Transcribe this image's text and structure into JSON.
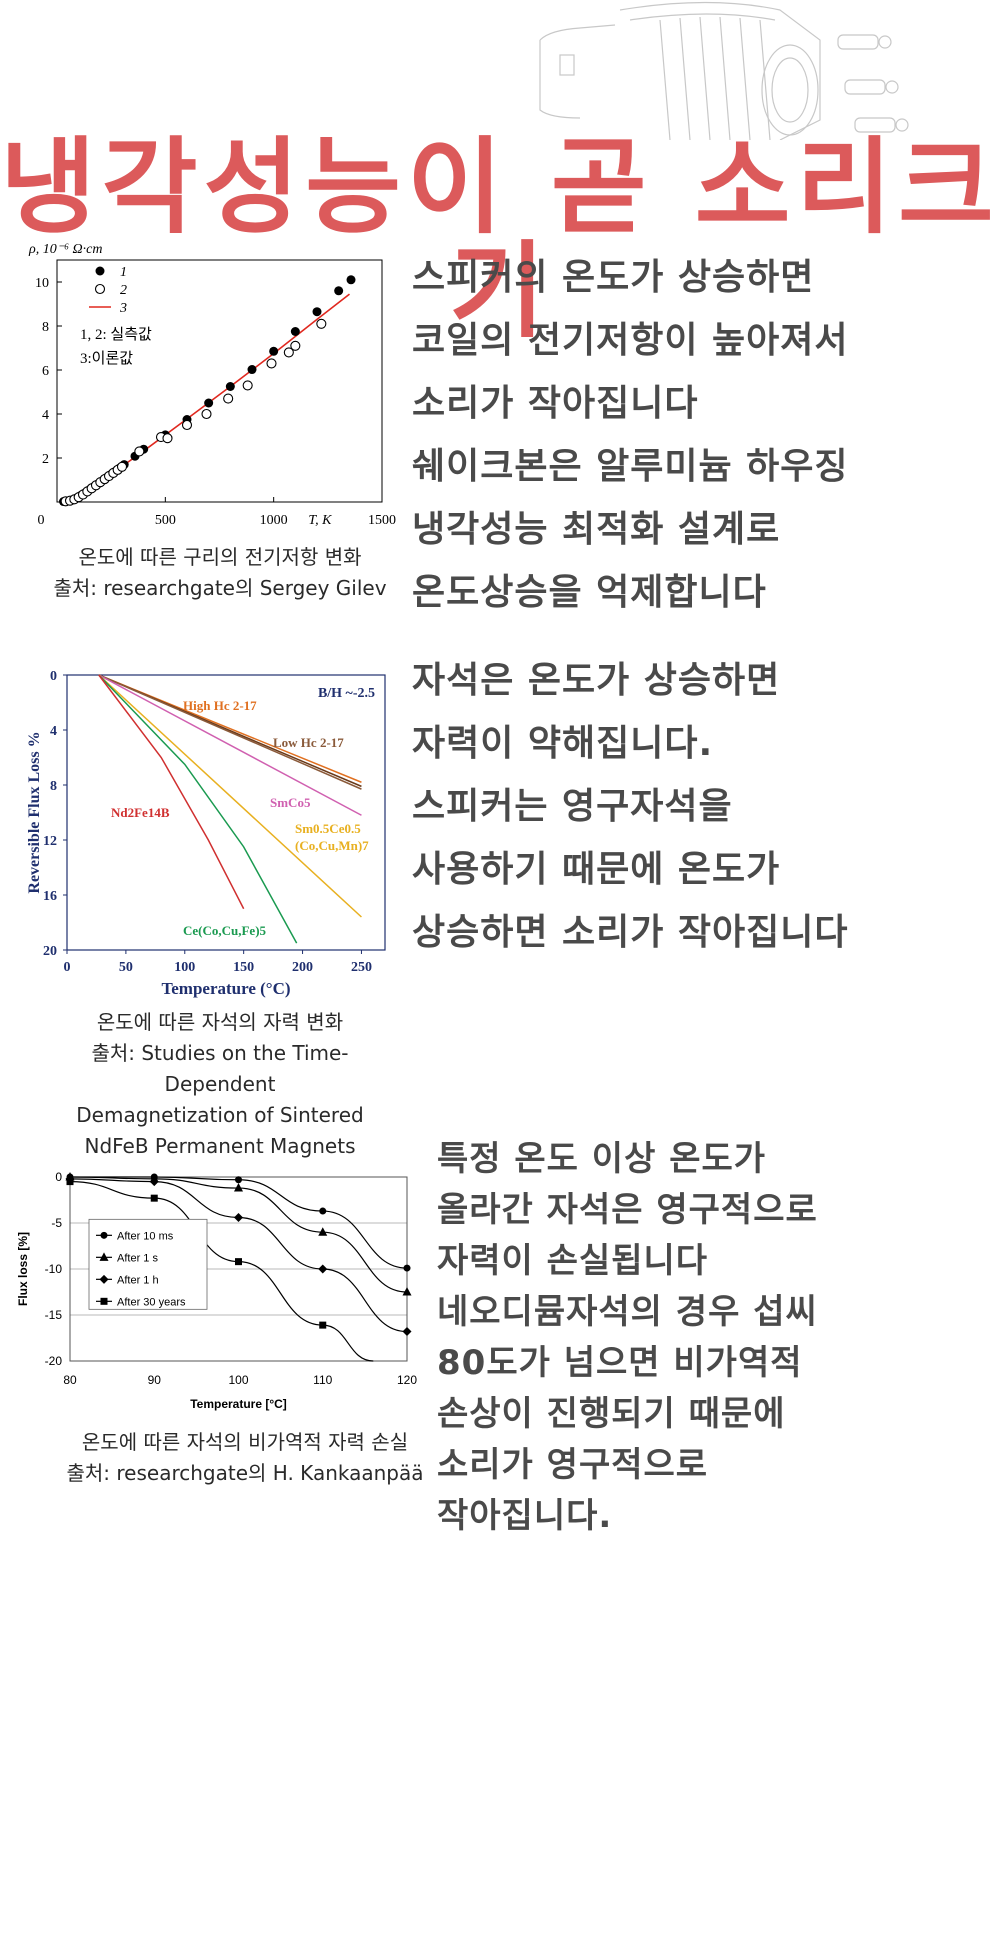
{
  "colors": {
    "title": "#dc5a5b",
    "text": "#4a4a4a",
    "fit": "#e0281f"
  },
  "header": {
    "title": "냉각성능이 곧 소리크기",
    "background_image": "speaker-housing-line-drawing"
  },
  "section1": {
    "lines": [
      "스피커의 온도가 상승하면",
      "코일의 전기저항이 높아져서",
      "소리가 작아집니다",
      "쉐이크본은 알루미늄 하우징",
      "냉각성능 최적화 설계로",
      "온도상승을 억제합니다"
    ],
    "caption": [
      "온도에 따른 구리의 전기저항 변화",
      "출처: researchgate의 Sergey Gilev"
    ]
  },
  "section2": {
    "lines": [
      "자석은 온도가 상승하면",
      "자력이 약해집니다.",
      "스피커는 영구자석을",
      "사용하기 때문에 온도가",
      "상승하면 소리가 작아집니다"
    ],
    "caption": [
      "온도에 따른 자석의 자력 변화",
      "출처: Studies on the Time-Dependent",
      "Demagnetization of Sintered",
      "NdFeB Permanent Magnets"
    ]
  },
  "section3": {
    "lines": [
      "특정 온도 이상 온도가",
      "올라간 자석은 영구적으로",
      "자력이 손실됩니다",
      "네오디뮴자석의 경우 섭씨",
      "80도가 넘으면 비가역적",
      "손상이 진행되기 때문에",
      "소리가 영구적으로",
      "작아집니다."
    ],
    "caption": [
      "온도에 따른 자석의 비가역적 자력 손실",
      "출처: researchgate의 H. Kankaanpää"
    ]
  },
  "chart_data": [
    {
      "type": "scatter",
      "title": "",
      "ylabel": "ρ, 10⁻⁶ Ω·cm",
      "xlabel": "T, K",
      "xlim": [
        0,
        1500
      ],
      "ylim": [
        0,
        11
      ],
      "xticks": [
        0,
        500,
        1000,
        1500
      ],
      "yticks": [
        2,
        4,
        6,
        8,
        10
      ],
      "legend": [
        {
          "marker": "filled-circle",
          "name": "1"
        },
        {
          "marker": "open-circle",
          "name": "2"
        },
        {
          "marker": "line",
          "name": "3"
        }
      ],
      "annotation": [
        "1, 2: 실측값",
        "3:이론값"
      ],
      "series": [
        {
          "name": "1",
          "marker": "filled",
          "x": [
            30,
            50,
            70,
            90,
            110,
            130,
            150,
            170,
            190,
            210,
            230,
            250,
            270,
            290,
            310,
            360,
            400,
            500,
            600,
            700,
            800,
            900,
            1000,
            1100,
            1200,
            1300,
            1357
          ],
          "y": [
            0.02,
            0.04,
            0.08,
            0.18,
            0.3,
            0.42,
            0.56,
            0.7,
            0.83,
            0.97,
            1.12,
            1.26,
            1.4,
            1.55,
            1.7,
            2.08,
            2.4,
            3.05,
            3.75,
            4.5,
            5.25,
            6.02,
            6.85,
            7.75,
            8.65,
            9.6,
            10.1
          ]
        },
        {
          "name": "2",
          "marker": "open",
          "x": [
            40,
            60,
            80,
            100,
            120,
            140,
            160,
            180,
            200,
            220,
            240,
            260,
            280,
            300,
            380,
            480,
            510,
            600,
            690,
            790,
            880,
            990,
            1070,
            1100,
            1220
          ],
          "y": [
            0.03,
            0.06,
            0.12,
            0.22,
            0.34,
            0.48,
            0.62,
            0.76,
            0.9,
            1.04,
            1.18,
            1.32,
            1.46,
            1.6,
            2.3,
            2.95,
            2.9,
            3.5,
            4.0,
            4.7,
            5.3,
            6.3,
            6.8,
            7.1,
            8.1
          ]
        },
        {
          "name": "3",
          "marker": "line",
          "x": [
            20,
            100,
            200,
            300,
            400,
            600,
            800,
            1000,
            1200,
            1350
          ],
          "y": [
            0.0,
            0.25,
            0.9,
            1.62,
            2.32,
            3.78,
            5.25,
            6.75,
            8.3,
            9.45
          ]
        }
      ]
    },
    {
      "type": "line",
      "ylabel": "Reversible Flux Loss %",
      "xlabel": "Temperature (°C)",
      "xlim": [
        0,
        270
      ],
      "ylim": [
        0,
        20
      ],
      "y_inverted": true,
      "xticks": [
        0,
        50,
        100,
        150,
        200,
        250
      ],
      "yticks": [
        0,
        4,
        8,
        12,
        16,
        20
      ],
      "annotation": "B/H ~-2.5",
      "series": [
        {
          "name": "High Hc 2-17",
          "color": "#e07020",
          "x": [
            27,
            250
          ],
          "y": [
            0,
            7.8
          ]
        },
        {
          "name": "High Hc 2-17 (2)",
          "color": "#6a3a1a",
          "x": [
            27,
            250
          ],
          "y": [
            0,
            8.1
          ]
        },
        {
          "name": "Low Hc 2-17",
          "color": "#8a5a3a",
          "x": [
            27,
            250
          ],
          "y": [
            0,
            8.3
          ]
        },
        {
          "name": "SmCo5",
          "color": "#d060b0",
          "x": [
            27,
            250
          ],
          "y": [
            0,
            10.2
          ]
        },
        {
          "name": "Sm0.5Ce0.5 (Co,Cu,Mn)7",
          "color": "#e8b020",
          "x": [
            27,
            250
          ],
          "y": [
            0,
            17.6
          ]
        },
        {
          "name": "Ce(Co,Cu,Fe)5",
          "color": "#1a9a50",
          "x": [
            27,
            100,
            150,
            195
          ],
          "y": [
            0,
            6.5,
            12.5,
            19.5
          ]
        },
        {
          "name": "Nd2Fe14B",
          "color": "#d03030",
          "x": [
            27,
            80,
            120,
            150
          ],
          "y": [
            0,
            6.0,
            12.0,
            17.0
          ]
        }
      ]
    },
    {
      "type": "line",
      "ylabel": "Flux loss [%]",
      "xlabel": "Temperature [°C]",
      "xlim": [
        80,
        120
      ],
      "ylim": [
        -20,
        0
      ],
      "xticks": [
        80,
        90,
        100,
        110,
        120
      ],
      "yticks": [
        0,
        -5,
        -10,
        -15,
        -20
      ],
      "series": [
        {
          "name": "After 10 ms",
          "marker": "circle",
          "x": [
            80,
            90,
            100,
            110,
            120
          ],
          "y": [
            0,
            0,
            -0.3,
            -3.7,
            -9.9
          ]
        },
        {
          "name": "After 1 s",
          "marker": "triangle",
          "x": [
            80,
            90,
            100,
            110,
            120
          ],
          "y": [
            0,
            -0.2,
            -1.2,
            -6.0,
            -12.5
          ]
        },
        {
          "name": "After 1 h",
          "marker": "diamond",
          "x": [
            80,
            90,
            100,
            110,
            120
          ],
          "y": [
            -0.2,
            -0.5,
            -4.4,
            -10.0,
            -16.8
          ]
        },
        {
          "name": "After 30 years",
          "marker": "square",
          "x": [
            80,
            90,
            100,
            110,
            116
          ],
          "y": [
            -0.5,
            -2.3,
            -9.2,
            -16.1,
            -20
          ]
        }
      ]
    }
  ]
}
